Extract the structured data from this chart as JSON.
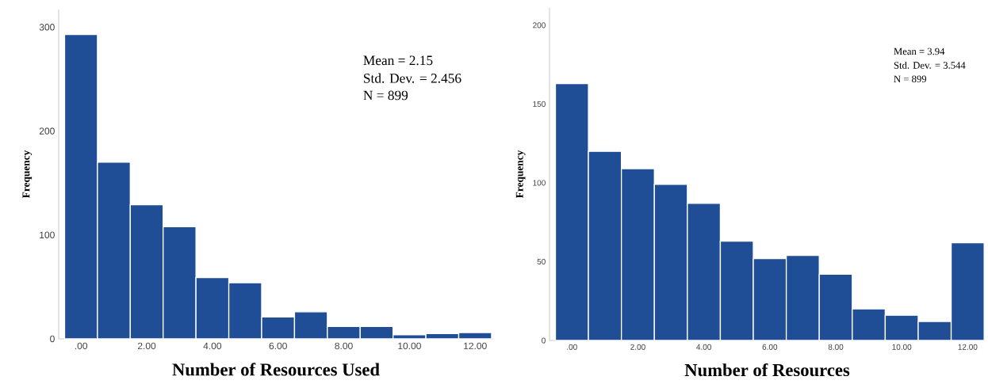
{
  "chart_data": [
    {
      "type": "histogram",
      "xlabel": "Number of Resources Used",
      "ylabel": "Frequency",
      "color": "#1f4e96",
      "bins": [
        -0.5,
        0.5,
        1.5,
        2.5,
        3.5,
        4.5,
        5.5,
        6.5,
        7.5,
        8.5,
        9.5,
        10.5,
        11.5,
        12.5
      ],
      "values": [
        293,
        170,
        129,
        108,
        59,
        54,
        21,
        26,
        12,
        12,
        4,
        5,
        6
      ],
      "xlim": [
        -0.68,
        12.55
      ],
      "ylim": [
        0,
        317
      ],
      "xticks": [
        {
          "value": 0,
          "label": ".00"
        },
        {
          "value": 2,
          "label": "2.00"
        },
        {
          "value": 4,
          "label": "4.00"
        },
        {
          "value": 6,
          "label": "6.00"
        },
        {
          "value": 8,
          "label": "8.00"
        },
        {
          "value": 10,
          "label": "10.00"
        },
        {
          "value": 12,
          "label": "12.00"
        }
      ],
      "yticks": [
        0,
        100,
        200,
        300
      ],
      "annotations": [
        "Mean = 2.15",
        "Std. Dev. = 2.456",
        "N = 899"
      ]
    },
    {
      "type": "histogram",
      "xlabel": "Number of Resources",
      "ylabel": "Frequency",
      "color": "#1f4e96",
      "bins": [
        -0.5,
        0.5,
        1.5,
        2.5,
        3.5,
        4.5,
        5.5,
        6.5,
        7.5,
        8.5,
        9.5,
        10.5,
        11.5,
        12.5
      ],
      "values": [
        163,
        120,
        109,
        99,
        87,
        63,
        52,
        54,
        42,
        20,
        16,
        12,
        62
      ],
      "xlim": [
        -0.68,
        12.52
      ],
      "ylim": [
        0,
        211
      ],
      "xticks": [
        {
          "value": 0,
          "label": ".00"
        },
        {
          "value": 2,
          "label": "2.00"
        },
        {
          "value": 4,
          "label": "4.00"
        },
        {
          "value": 6,
          "label": "6.00"
        },
        {
          "value": 8,
          "label": "8.00"
        },
        {
          "value": 10,
          "label": "10.00"
        },
        {
          "value": 12,
          "label": "12.00"
        }
      ],
      "yticks": [
        0,
        50,
        100,
        150,
        200
      ],
      "annotations": [
        "Mean = 3.94",
        "Std. Dev. = 3.544",
        "N = 899"
      ]
    }
  ]
}
